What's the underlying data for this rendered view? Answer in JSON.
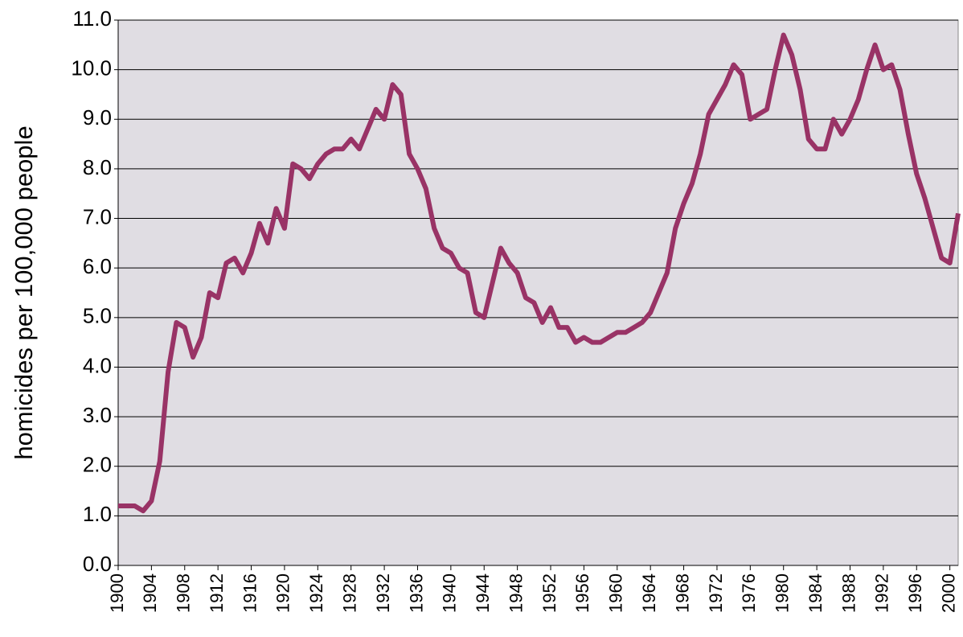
{
  "chart_data": {
    "type": "line",
    "y_label": "homicides per 100,000 people",
    "x": [
      1900,
      1901,
      1902,
      1903,
      1904,
      1905,
      1906,
      1907,
      1908,
      1909,
      1910,
      1911,
      1912,
      1913,
      1914,
      1915,
      1916,
      1917,
      1918,
      1919,
      1920,
      1921,
      1922,
      1923,
      1924,
      1925,
      1926,
      1927,
      1928,
      1929,
      1930,
      1931,
      1932,
      1933,
      1934,
      1935,
      1936,
      1937,
      1938,
      1939,
      1940,
      1941,
      1942,
      1943,
      1944,
      1945,
      1946,
      1947,
      1948,
      1949,
      1950,
      1951,
      1952,
      1953,
      1954,
      1955,
      1956,
      1957,
      1958,
      1959,
      1960,
      1961,
      1962,
      1963,
      1964,
      1965,
      1966,
      1967,
      1968,
      1969,
      1970,
      1971,
      1972,
      1973,
      1974,
      1975,
      1976,
      1977,
      1978,
      1979,
      1980,
      1981,
      1982,
      1983,
      1984,
      1985,
      1986,
      1987,
      1988,
      1989,
      1990,
      1991,
      1992,
      1993,
      1994,
      1995,
      1996,
      1997,
      1998,
      1999,
      2000,
      2001
    ],
    "values": [
      1.2,
      1.2,
      1.2,
      1.1,
      1.3,
      2.1,
      3.9,
      4.9,
      4.8,
      4.2,
      4.6,
      5.5,
      5.4,
      6.1,
      6.2,
      5.9,
      6.3,
      6.9,
      6.5,
      7.2,
      6.8,
      8.1,
      8.0,
      7.8,
      8.1,
      8.3,
      8.4,
      8.4,
      8.6,
      8.4,
      8.8,
      9.2,
      9.0,
      9.7,
      9.5,
      8.3,
      8.0,
      7.6,
      6.8,
      6.4,
      6.3,
      6.0,
      5.9,
      5.1,
      5.0,
      5.7,
      6.4,
      6.1,
      5.9,
      5.4,
      5.3,
      4.9,
      5.2,
      4.8,
      4.8,
      4.5,
      4.6,
      4.5,
      4.5,
      4.6,
      4.7,
      4.7,
      4.8,
      4.9,
      5.1,
      5.5,
      5.9,
      6.8,
      7.3,
      7.7,
      8.3,
      9.1,
      9.4,
      9.7,
      10.1,
      9.9,
      9.0,
      9.1,
      9.2,
      10.0,
      10.7,
      10.3,
      9.6,
      8.6,
      8.4,
      8.4,
      9.0,
      8.7,
      9.0,
      9.4,
      10.0,
      10.5,
      10.0,
      10.1,
      9.6,
      8.7,
      7.9,
      7.4,
      6.8,
      6.2,
      6.1,
      7.1
    ],
    "color": "#993366",
    "background": "#e0dde3",
    "xlim": [
      1900,
      2001
    ],
    "xticks": [
      1900,
      1904,
      1908,
      1912,
      1916,
      1920,
      1924,
      1928,
      1932,
      1936,
      1940,
      1944,
      1948,
      1952,
      1956,
      1960,
      1964,
      1968,
      1972,
      1976,
      1980,
      1984,
      1988,
      1992,
      1996,
      2000
    ],
    "ylim": [
      0,
      11
    ],
    "yticks": [
      {
        "value": 0,
        "label": "0.0"
      },
      {
        "value": 1,
        "label": "1.0"
      },
      {
        "value": 2,
        "label": "2.0"
      },
      {
        "value": 3,
        "label": "3.0"
      },
      {
        "value": 4,
        "label": "4.0"
      },
      {
        "value": 5,
        "label": "5.0"
      },
      {
        "value": 6,
        "label": "6.0"
      },
      {
        "value": 7,
        "label": "7.0"
      },
      {
        "value": 8,
        "label": "8.0"
      },
      {
        "value": 9,
        "label": "9.0"
      },
      {
        "value": 10,
        "label": "10.0"
      },
      {
        "value": 11,
        "label": "11.0"
      }
    ],
    "grid": true
  }
}
